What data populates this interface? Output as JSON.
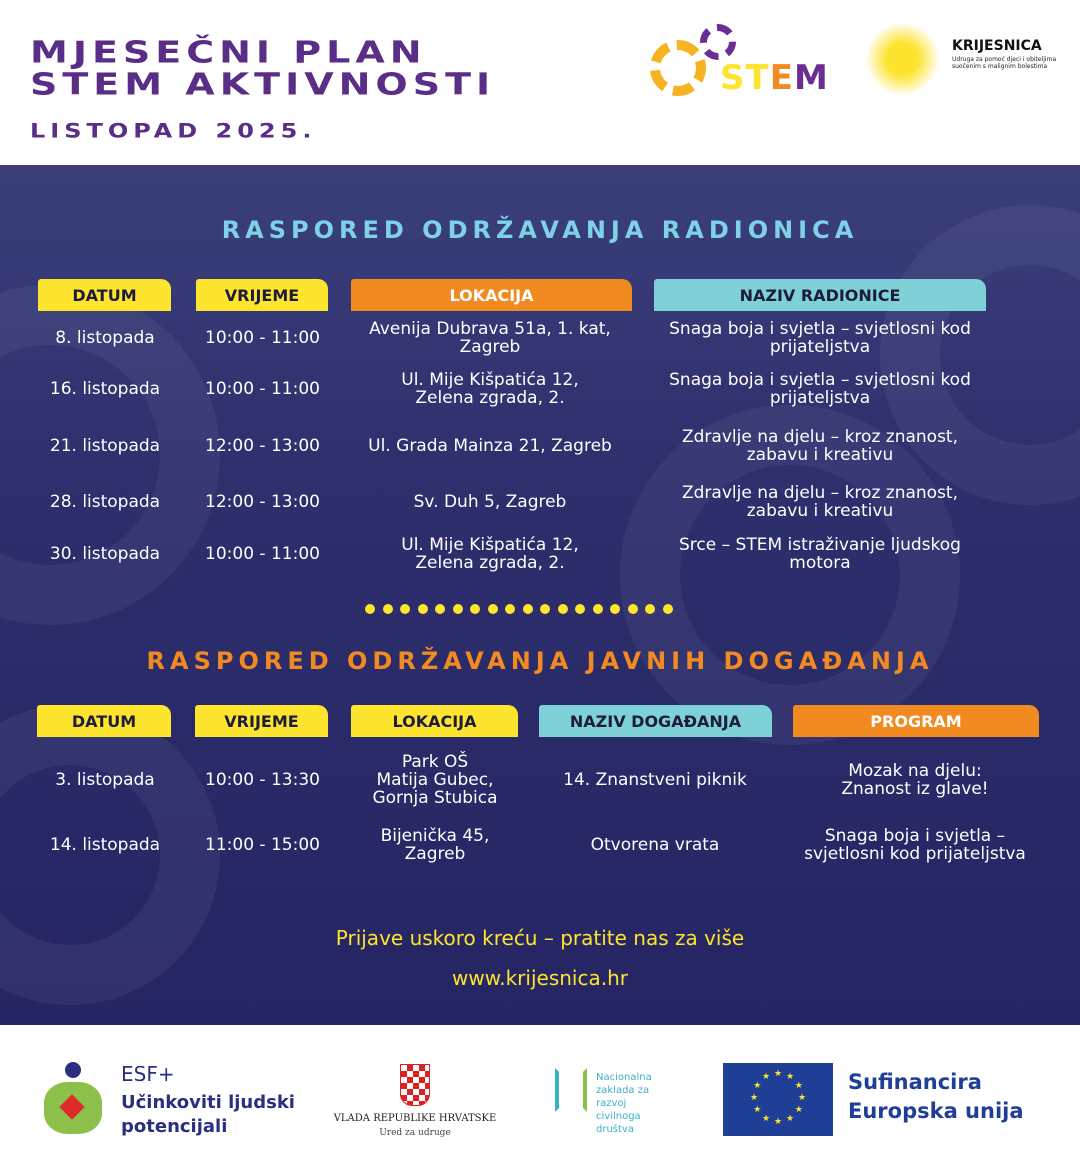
{
  "header": {
    "title_line1": "MJESEČNI PLAN",
    "title_line2": "STEM AKTIVNOSTI",
    "month": "LISTOPAD 2025.",
    "stem_logo_text": "STEM",
    "krijesnica_name": "KRIJESNICA",
    "krijesnica_tagline": "Udruga za pomoć djeci i obiteljima suočenim s malignim bolestima"
  },
  "workshops": {
    "title": "RASPORED ODRŽAVANJA RADIONICA",
    "columns": [
      "DATUM",
      "VRIJEME",
      "LOKACIJA",
      "NAZIV RADIONICE"
    ],
    "rows": [
      [
        "8. listopada",
        "10:00 - 11:00",
        "Avenija Dubrava 51a, 1. kat, Zagreb",
        "Snaga boja i svjetla – svjetlosni kod\nprijateljstva"
      ],
      [
        "16. listopada",
        "10:00 - 11:00",
        "Ul. Mije Kišpatića 12,\nZelena zgrada, 2.",
        "Snaga boja i svjetla – svjetlosni kod\nprijateljstva"
      ],
      [
        "21. listopada",
        "12:00 - 13:00",
        "Ul. Grada Mainza 21, Zagreb",
        "Zdravlje na djelu – kroz znanost,\nzabavu i kreativu"
      ],
      [
        "28. listopada",
        "12:00 - 13:00",
        "Sv. Duh 5, Zagreb",
        "Zdravlje na djelu – kroz znanost,\nzabavu i kreativu"
      ],
      [
        "30. listopada",
        "10:00 - 11:00",
        "Ul. Mije Kišpatića 12,\nZelena zgrada, 2.",
        "Srce – STEM istraživanje ljudskog\nmotora"
      ]
    ]
  },
  "events": {
    "title": "RASPORED ODRŽAVANJA JAVNIH DOGAĐANJA",
    "columns": [
      "DATUM",
      "VRIJEME",
      "LOKACIJA",
      "NAZIV DOGAĐANJA",
      "PROGRAM"
    ],
    "rows": [
      [
        "3. listopada",
        "10:00 - 13:30",
        "Park OŠ\nMatija Gubec,\nGornja Stubica",
        "14. Znanstveni piknik",
        "Mozak na djelu:\nZnanost iz glave!"
      ],
      [
        "14. listopada",
        "11:00 - 15:00",
        "Bijenička 45,\nZagreb",
        "Otvorena vrata",
        "Snaga boja i svjetla –\nsvjetlosni kod prijateljstva"
      ]
    ]
  },
  "cta": {
    "text": "Prijave uskoro kreću – pratite nas za više",
    "url": "www.krijesnica.hr"
  },
  "colors": {
    "purple": "#5a2d86",
    "navy": "#2d2e6c",
    "yellow": "#fde42e",
    "orange": "#f28a22",
    "cyan": "#7fd1d8"
  },
  "footer": {
    "esf_title": "ESF+",
    "esf_line1": "Učinkoviti ljudski",
    "esf_line2": "potencijali",
    "vlada_line1": "VLADA REPUBLIKE HRVATSKE",
    "vlada_line2": "Ured za udruge",
    "nzrcd": "Nacionalna\nzaklada za\nrazvoj\ncivilnoga\ndruštva",
    "eu_line1": "Sufinancira",
    "eu_line2": "Europska unija"
  }
}
